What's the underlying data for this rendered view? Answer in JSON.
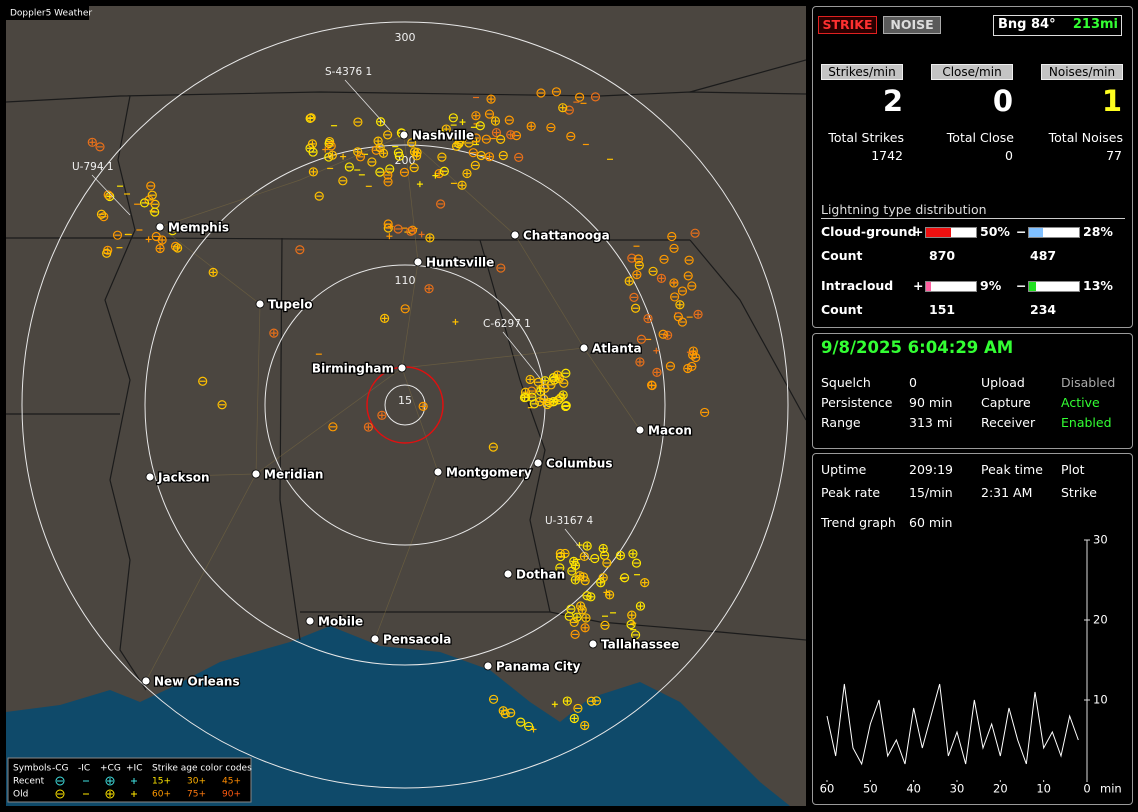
{
  "map": {
    "title": "Doppler5 Weather",
    "rings": [
      300,
      200,
      110,
      15
    ],
    "cities": [
      "Nashville",
      "Memphis",
      "Chattanooga",
      "Huntsville",
      "Tupelo",
      "Atlanta",
      "Birmingham",
      "Macon",
      "Columbus",
      "Montgomery",
      "Jackson",
      "Meridian",
      "Dothan",
      "Mobile",
      "Pensacola",
      "Tallahassee",
      "Panama City",
      "New Orleans"
    ],
    "storms": [
      "S-4376 1",
      "U-794 1",
      "C-6297 1",
      "U-3167 4"
    ],
    "legend": {
      "symbols": "Symbols",
      "types": [
        "-CG",
        "-IC",
        "+CG",
        "+IC"
      ],
      "age_title": "Strike age color codes",
      "rows": [
        "Recent",
        "Old"
      ],
      "ages": [
        [
          "15+",
          "30+",
          "45+"
        ],
        [
          "60+",
          "75+",
          "90+"
        ]
      ]
    }
  },
  "panel": {
    "modes": [
      "STRIKE",
      "NOISE"
    ],
    "bearing": "Bng 84°",
    "distance": "213mi",
    "rates": {
      "labels": [
        "Strikes/min",
        "Close/min",
        "Noises/min"
      ],
      "values": [
        2,
        0,
        1
      ]
    },
    "totals": {
      "labels": [
        "Total Strikes",
        "Total Close",
        "Total Noises"
      ],
      "values": [
        1742,
        0,
        77
      ]
    },
    "distribution": {
      "title": "Lightning type distribution",
      "rows": [
        {
          "label": "Cloud-ground",
          "pos_sign": "+",
          "pos": {
            "value": 50,
            "label": "50%"
          },
          "neg_sign": "−",
          "neg": {
            "value": 28,
            "label": "28%"
          },
          "count_label": "Count",
          "counts": [
            870,
            487
          ]
        },
        {
          "label": "Intracloud",
          "pos_sign": "+",
          "pos": {
            "value": 9,
            "label": "9%"
          },
          "neg_sign": "−",
          "neg": {
            "value": 13,
            "label": "13%"
          },
          "count_label": "Count",
          "counts": [
            151,
            234
          ]
        }
      ]
    },
    "clock": "9/8/2025 6:04:29 AM",
    "status": [
      [
        "Squelch",
        0,
        "Upload",
        "Disabled"
      ],
      [
        "Persistence",
        "90 min",
        "Capture",
        "Active"
      ],
      [
        "Range",
        "313 mi",
        "Receiver",
        "Enabled"
      ]
    ],
    "stats": [
      [
        "Uptime",
        "209:19",
        "Peak time",
        "Plot"
      ],
      [
        "Peak rate",
        "15/min",
        "2:31 AM",
        "Strike"
      ]
    ],
    "trend": {
      "title": "Trend graph",
      "span": "60 min",
      "xlabel": "min",
      "xlim": [
        60,
        0
      ],
      "xticks": [
        60,
        50,
        40,
        30,
        20,
        10,
        0
      ],
      "ylim": [
        0,
        30
      ],
      "yticks": [
        10,
        20,
        30
      ],
      "x": [
        60,
        58,
        56,
        54,
        52,
        50,
        48,
        46,
        44,
        42,
        40,
        38,
        36,
        34,
        32,
        30,
        28,
        26,
        24,
        22,
        20,
        18,
        16,
        14,
        12,
        10,
        8,
        6,
        4,
        2
      ],
      "series": [
        {
          "color": "#ffffff",
          "values": [
            8,
            3,
            12,
            4,
            2,
            7,
            10,
            3,
            5,
            2,
            9,
            4,
            8,
            12,
            3,
            6,
            2,
            10,
            4,
            7,
            3,
            9,
            5,
            2,
            11,
            4,
            6,
            3,
            8,
            5
          ]
        }
      ]
    }
  }
}
